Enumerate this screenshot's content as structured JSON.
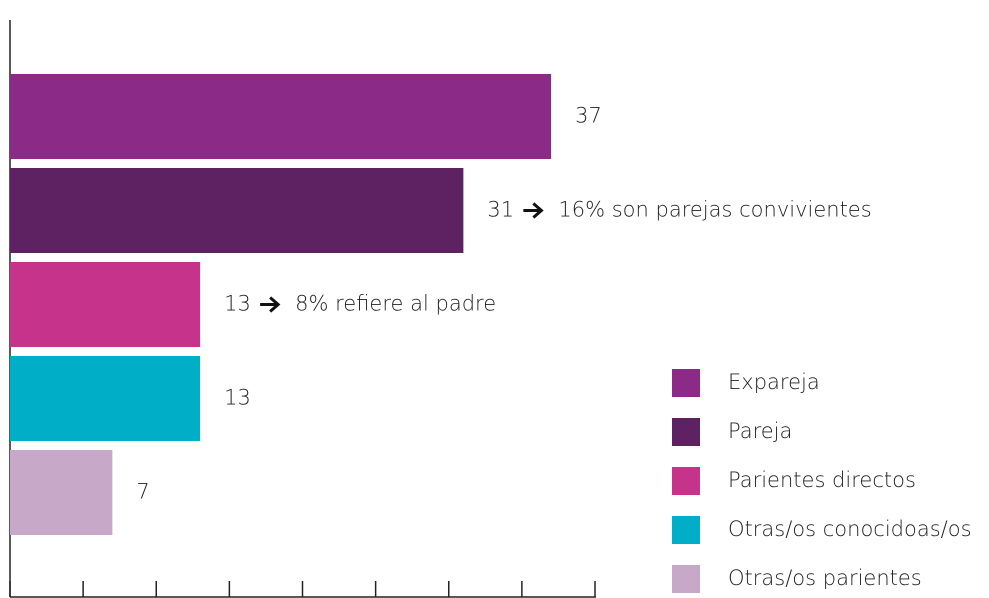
{
  "chart_data": {
    "type": "hbar",
    "categories": [
      "Expareja",
      "Pareja",
      "Parientes directos",
      "Otras/os conocidoas/os",
      "Otras/os parientes"
    ],
    "values": [
      37,
      31,
      13,
      13,
      7
    ],
    "colors": [
      "#8b2a87",
      "#5e2161",
      "#c6338a",
      "#00aec7",
      "#c7a8c8"
    ],
    "annotations": [
      null,
      "16% son parejas convivientes",
      "8% refiere al padre",
      null,
      null
    ],
    "xlim": [
      0,
      40
    ],
    "xticks": [
      0,
      5,
      10,
      15,
      20,
      25,
      30,
      35,
      40
    ],
    "legend": "bottom-right"
  }
}
